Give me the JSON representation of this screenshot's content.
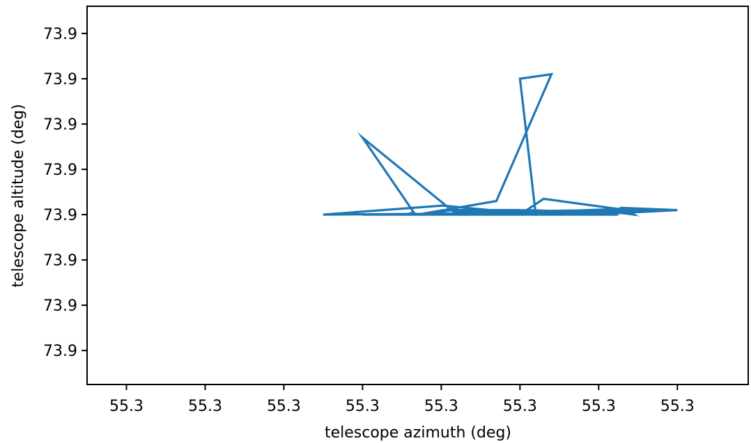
{
  "chart_data": {
    "type": "line",
    "title": "",
    "xlabel": "telescope azimuth (deg)",
    "ylabel": "telescope altitude (deg)",
    "xlim": [
      -0.5,
      7.9
    ],
    "ylim": [
      -3.75,
      4.6
    ],
    "x_ticks": [
      0,
      1,
      2,
      3,
      4,
      5,
      6,
      7
    ],
    "x_tick_labels": [
      "55.3",
      "55.3",
      "55.3",
      "55.3",
      "55.3",
      "55.3",
      "55.3",
      "55.3"
    ],
    "y_ticks": [
      -3,
      -2,
      -1,
      0,
      1,
      2,
      3,
      4
    ],
    "y_tick_labels": [
      "73.9",
      "73.9",
      "73.9",
      "73.9",
      "73.9",
      "73.9",
      "73.9",
      "73.9"
    ],
    "grid": false,
    "series": [
      {
        "color": "#1f77b4",
        "x": [
          7.0,
          5.0,
          6.2,
          5.35,
          6.3,
          4.15,
          7.0,
          6.28,
          6.2,
          5.1,
          6.2,
          4.0,
          2.5,
          4.02,
          5.2,
          5.0,
          7.0,
          6.2,
          5.1,
          4.2,
          6.0,
          6.45,
          6.35,
          5.3,
          5.0,
          4.0,
          3.7,
          4.7,
          5.4,
          5.0,
          5.2,
          5.0,
          4.15,
          3.75,
          6.25,
          5.0,
          4.2,
          3.0,
          3.65,
          3.55,
          3.0,
          3.0,
          5.0,
          5.5,
          4.7
        ],
        "y": [
          0.1,
          0.05,
          0.12,
          0.0,
          0.05,
          0.07,
          0.1,
          0.15,
          0.03,
          0.05,
          0.07,
          0.02,
          0.0,
          0.2,
          0.0,
          0.05,
          0.1,
          0.03,
          0.1,
          0.05,
          0.1,
          0.0,
          0.1,
          0.35,
          0.0,
          0.0,
          0.0,
          0.3,
          3.1,
          3.0,
          0.0,
          0.1,
          0.1,
          0.0,
          0.0,
          0.05,
          0.0,
          1.7,
          0.05,
          0.0,
          0.0,
          0.0,
          0.0,
          0.0,
          0.0
        ]
      }
    ]
  }
}
